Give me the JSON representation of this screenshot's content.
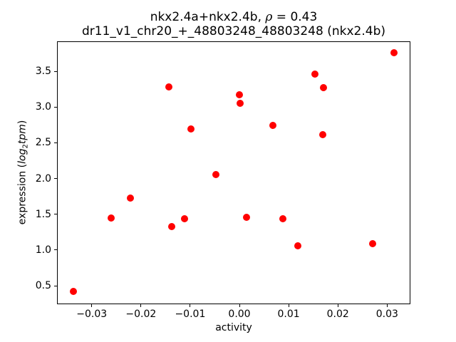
{
  "figure": {
    "title_line1": {
      "prefix": "nkx2.4a+nkx2.4b, ",
      "rho": "ρ",
      "suffix": " = 0.43"
    },
    "title_line2": "dr11_v1_chr20_+_48803248_48803248 (nkx2.4b)",
    "background_color": "#ffffff",
    "frame_color": "#000000"
  },
  "chart_data": {
    "type": "scatter",
    "title": "nkx2.4a+nkx2.4b, ρ = 0.43",
    "subtitle": "dr11_v1_chr20_+_48803248_48803248 (nkx2.4b)",
    "correlation_rho": 0.43,
    "xlabel": "activity",
    "ylabel": {
      "prefix": "expression (",
      "math_main": "log",
      "math_sub": "2",
      "math_word": "tpm",
      "suffix": ")"
    },
    "marker_color": "#ff0000",
    "marker_diameter_px": 10,
    "grid": false,
    "legend": false,
    "xlim": [
      -0.03705,
      0.03473
    ],
    "ylim": [
      0.241,
      3.919
    ],
    "x_ticks": [
      {
        "value": -0.03,
        "label": "−0.03"
      },
      {
        "value": -0.02,
        "label": "−0.02"
      },
      {
        "value": -0.01,
        "label": "−0.01"
      },
      {
        "value": 0.0,
        "label": "0.00"
      },
      {
        "value": 0.01,
        "label": "0.01"
      },
      {
        "value": 0.02,
        "label": "0.02"
      },
      {
        "value": 0.03,
        "label": "0.03"
      }
    ],
    "y_ticks": [
      {
        "value": 0.5,
        "label": "0.5"
      },
      {
        "value": 1.0,
        "label": "1.0"
      },
      {
        "value": 1.5,
        "label": "1.5"
      },
      {
        "value": 2.0,
        "label": "2.0"
      },
      {
        "value": 2.5,
        "label": "2.5"
      },
      {
        "value": 3.0,
        "label": "3.0"
      },
      {
        "value": 3.5,
        "label": "3.5"
      }
    ],
    "points": [
      {
        "x": -0.0337,
        "y": 0.42
      },
      {
        "x": -0.026,
        "y": 1.45
      },
      {
        "x": -0.0222,
        "y": 1.73
      },
      {
        "x": -0.0144,
        "y": 3.28
      },
      {
        "x": -0.0137,
        "y": 1.33
      },
      {
        "x": -0.0112,
        "y": 1.44
      },
      {
        "x": -0.0099,
        "y": 2.69
      },
      {
        "x": -0.0048,
        "y": 2.06
      },
      {
        "x": 0.0,
        "y": 3.17
      },
      {
        "x": 0.0002,
        "y": 3.05
      },
      {
        "x": 0.0014,
        "y": 1.46
      },
      {
        "x": 0.0068,
        "y": 2.74
      },
      {
        "x": 0.0088,
        "y": 1.44
      },
      {
        "x": 0.0118,
        "y": 1.06
      },
      {
        "x": 0.0154,
        "y": 3.46
      },
      {
        "x": 0.017,
        "y": 2.61
      },
      {
        "x": 0.0171,
        "y": 3.27
      },
      {
        "x": 0.027,
        "y": 1.09
      },
      {
        "x": 0.0314,
        "y": 3.76
      }
    ]
  }
}
